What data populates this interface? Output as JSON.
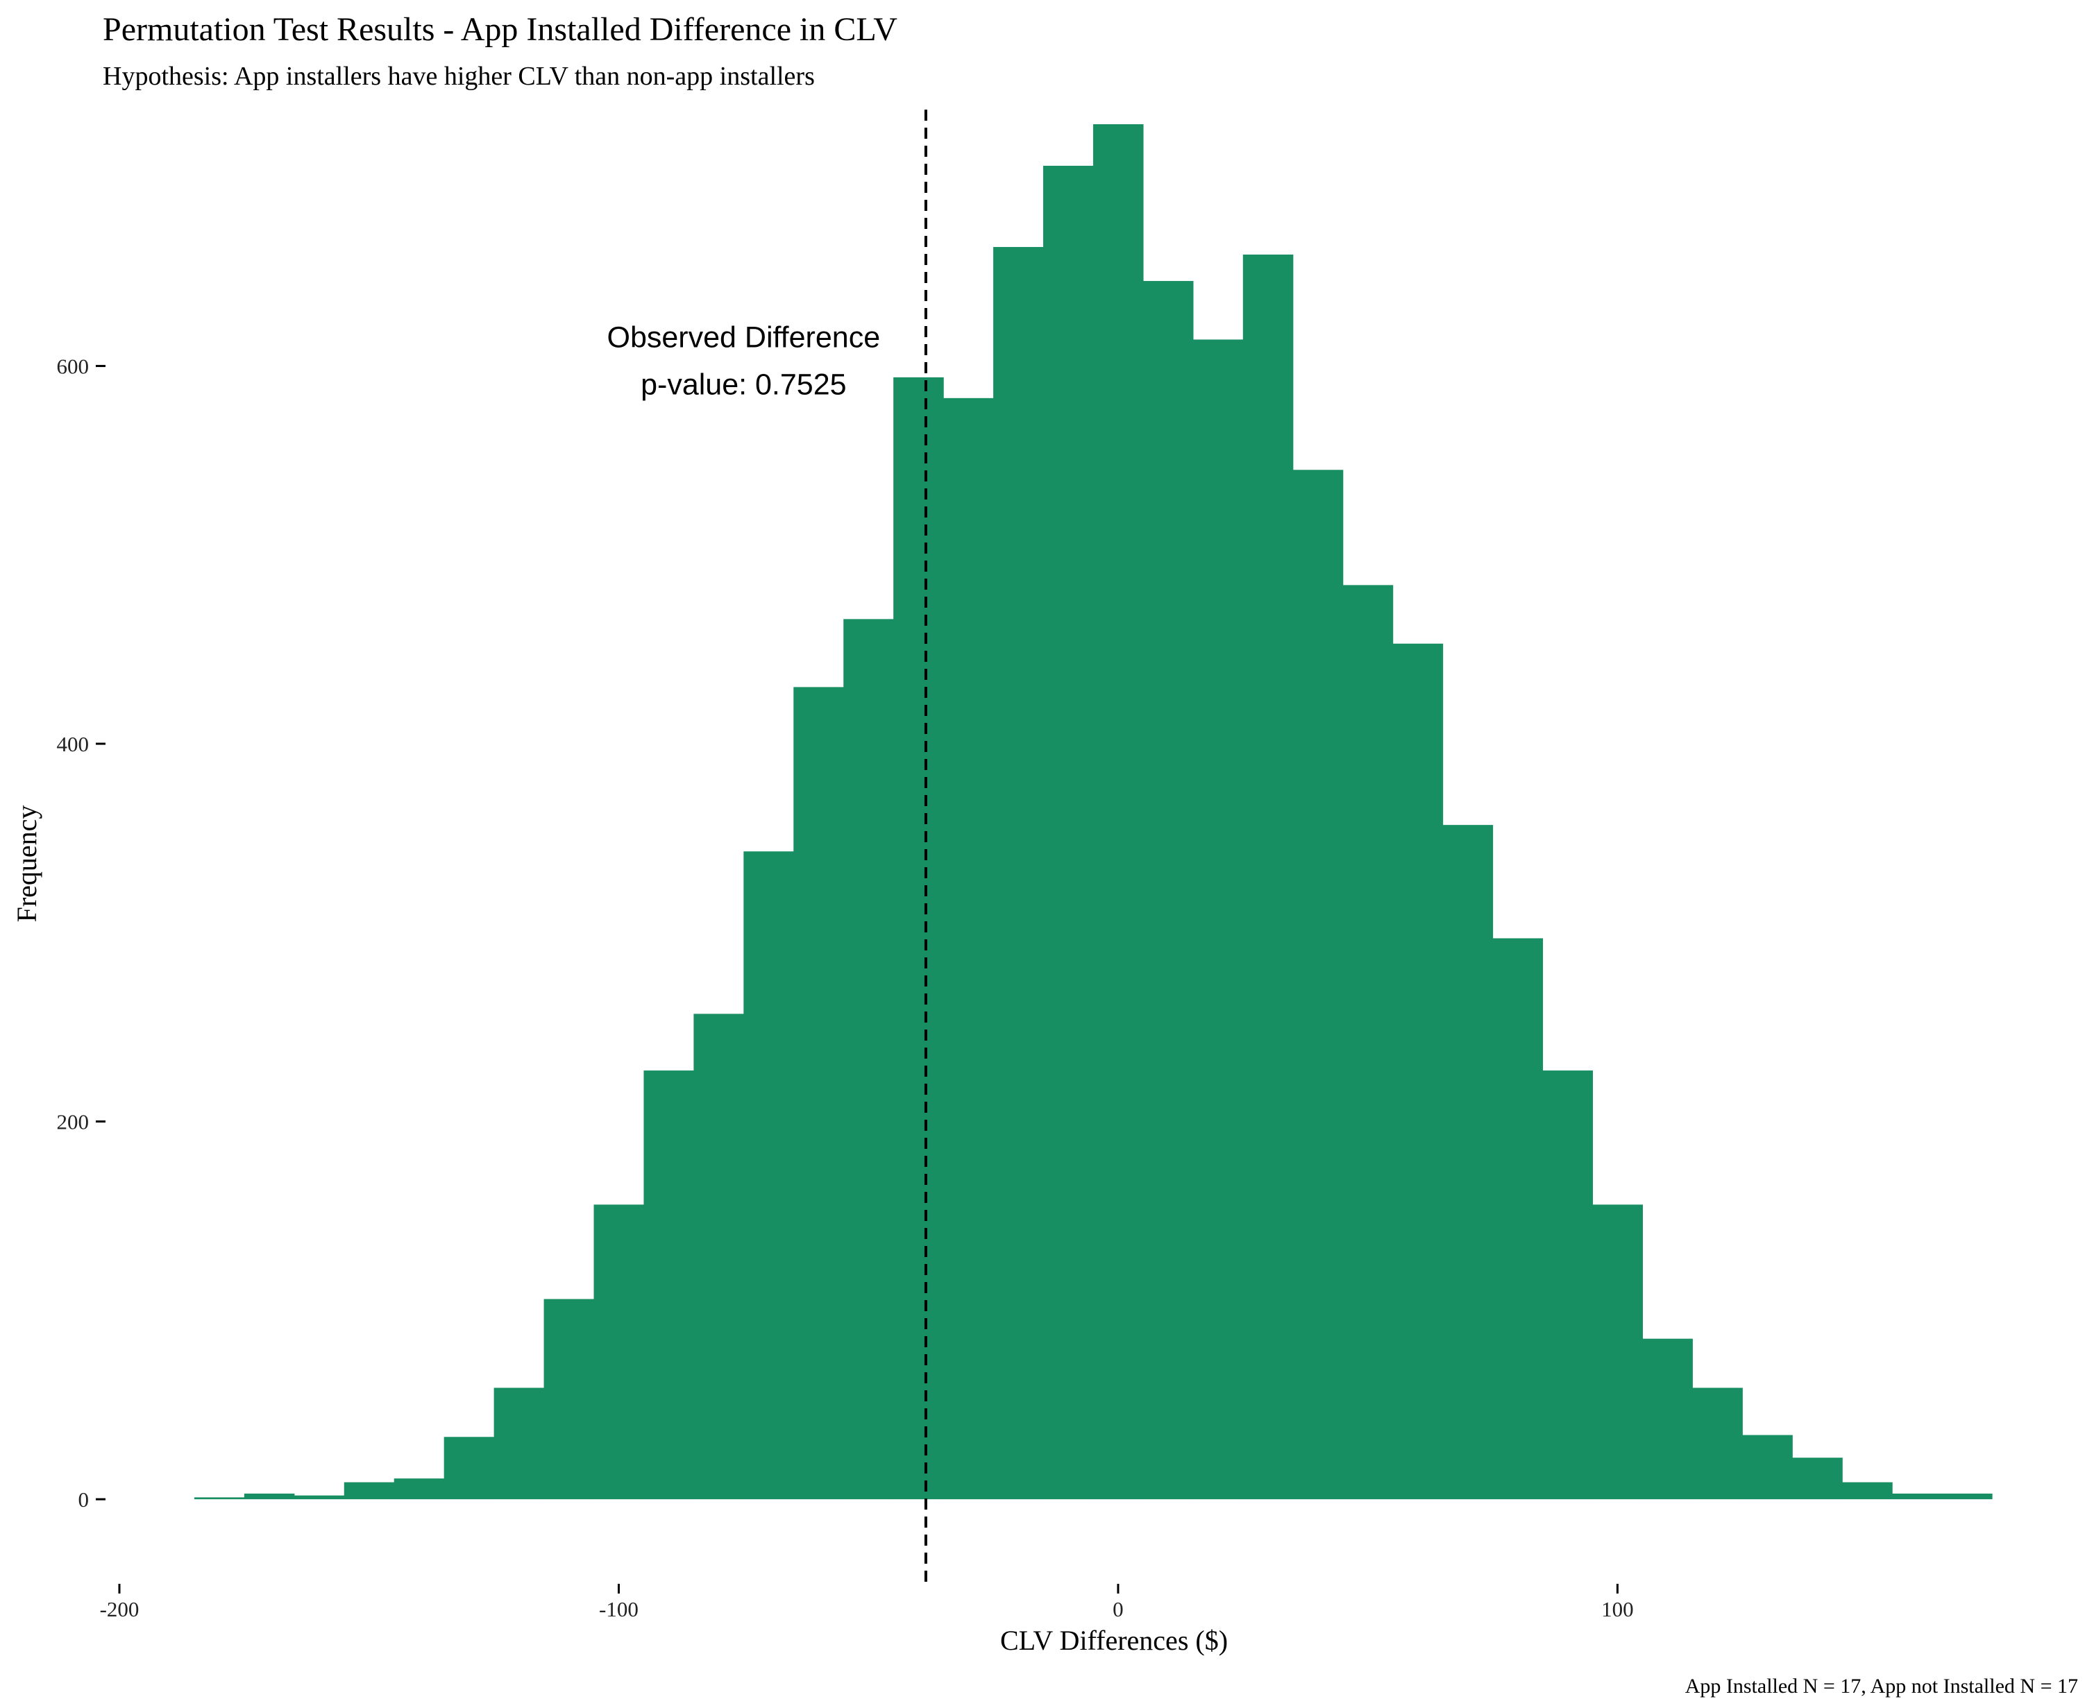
{
  "chart_data": {
    "type": "bar",
    "title": "Permutation Test Results - App Installed Difference in CLV",
    "subtitle": "Hypothesis: App installers have higher CLV than non-app installers",
    "xlabel": "CLV Differences ($)",
    "ylabel": "Frequency",
    "caption": "App Installed N = 17, App not Installed N = 17",
    "xlim": [
      -200,
      175
    ],
    "ylim": [
      -40,
      735
    ],
    "x_ticks": [
      {
        "value": -200,
        "label": "-200"
      },
      {
        "value": -100,
        "label": "-100"
      },
      {
        "value": 0,
        "label": "0"
      },
      {
        "value": 100,
        "label": "100"
      }
    ],
    "y_ticks": [
      {
        "value": 0,
        "label": "0"
      },
      {
        "value": 200,
        "label": "200"
      },
      {
        "value": 400,
        "label": "400"
      },
      {
        "value": 600,
        "label": "600"
      }
    ],
    "bins": [
      {
        "x0": -185,
        "x1": -175,
        "count": 1
      },
      {
        "x0": -175,
        "x1": -165,
        "count": 3
      },
      {
        "x0": -165,
        "x1": -155,
        "count": 2
      },
      {
        "x0": -155,
        "x1": -145,
        "count": 9
      },
      {
        "x0": -145,
        "x1": -135,
        "count": 11
      },
      {
        "x0": -135,
        "x1": -125,
        "count": 33
      },
      {
        "x0": -125,
        "x1": -115,
        "count": 59
      },
      {
        "x0": -115,
        "x1": -105,
        "count": 106
      },
      {
        "x0": -105,
        "x1": -95,
        "count": 156
      },
      {
        "x0": -95,
        "x1": -85,
        "count": 227
      },
      {
        "x0": -85,
        "x1": -75,
        "count": 257
      },
      {
        "x0": -75,
        "x1": -65,
        "count": 343
      },
      {
        "x0": -65,
        "x1": -55,
        "count": 430
      },
      {
        "x0": -55,
        "x1": -45,
        "count": 466
      },
      {
        "x0": -45,
        "x1": -35,
        "count": 594
      },
      {
        "x0": -35,
        "x1": -25,
        "count": 583
      },
      {
        "x0": -25,
        "x1": -15,
        "count": 663
      },
      {
        "x0": -15,
        "x1": -5,
        "count": 706
      },
      {
        "x0": -5,
        "x1": 5,
        "count": 728
      },
      {
        "x0": 5,
        "x1": 15,
        "count": 645
      },
      {
        "x0": 15,
        "x1": 25,
        "count": 614
      },
      {
        "x0": 25,
        "x1": 35,
        "count": 659
      },
      {
        "x0": 35,
        "x1": 45,
        "count": 545
      },
      {
        "x0": 45,
        "x1": 55,
        "count": 484
      },
      {
        "x0": 55,
        "x1": 65,
        "count": 453
      },
      {
        "x0": 65,
        "x1": 75,
        "count": 357
      },
      {
        "x0": 75,
        "x1": 85,
        "count": 297
      },
      {
        "x0": 85,
        "x1": 95,
        "count": 227
      },
      {
        "x0": 95,
        "x1": 105,
        "count": 156
      },
      {
        "x0": 105,
        "x1": 115,
        "count": 85
      },
      {
        "x0": 115,
        "x1": 125,
        "count": 59
      },
      {
        "x0": 125,
        "x1": 135,
        "count": 34
      },
      {
        "x0": 135,
        "x1": 145,
        "count": 22
      },
      {
        "x0": 145,
        "x1": 155,
        "count": 9
      },
      {
        "x0": 155,
        "x1": 165,
        "count": 3
      },
      {
        "x0": 165,
        "x1": 175,
        "count": 3
      }
    ],
    "observed_difference": -38.5,
    "annotation": {
      "line1": "Observed Difference",
      "line2": "p-value: 0.7525",
      "x": -75,
      "y_line1": 610,
      "y_line2": 585
    },
    "bar_color": "#178f62",
    "vline_color": "#000000",
    "grid": false,
    "legend": "none"
  }
}
